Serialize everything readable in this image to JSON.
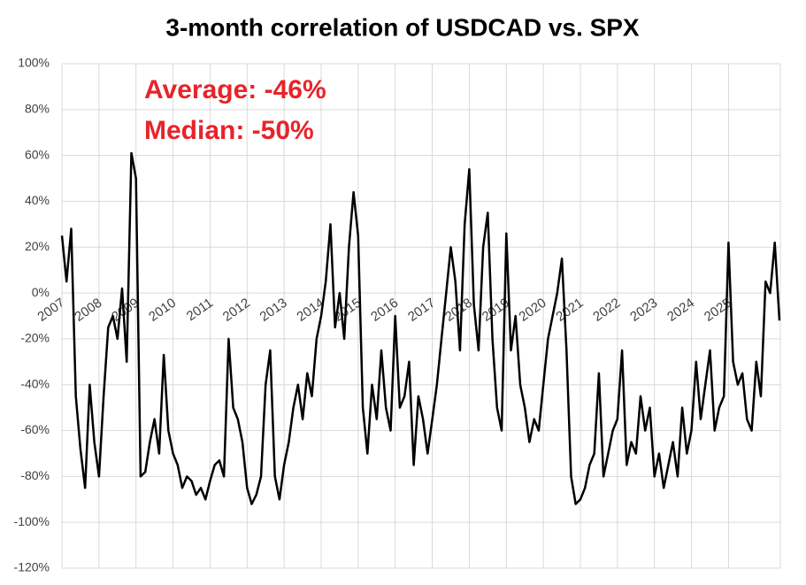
{
  "chart_data": {
    "type": "line",
    "title": "3-month correlation of USDCAD vs. SPX",
    "annotations": [
      "Average: -46%",
      "Median: -50%"
    ],
    "annotation_color": "#e8232a",
    "grid": true,
    "xlim": [
      2007,
      2026.4
    ],
    "xticks": [
      2007,
      2008,
      2009,
      2010,
      2011,
      2012,
      2013,
      2014,
      2015,
      2016,
      2017,
      2018,
      2019,
      2020,
      2021,
      2022,
      2023,
      2024,
      2025
    ],
    "ylim": [
      -120,
      100
    ],
    "yticks": [
      {
        "value": -120,
        "label": "-120%"
      },
      {
        "value": -100,
        "label": "-100%"
      },
      {
        "value": -80,
        "label": "-80%"
      },
      {
        "value": -60,
        "label": "-60%"
      },
      {
        "value": -40,
        "label": "-40%"
      },
      {
        "value": -20,
        "label": "-20%"
      },
      {
        "value": 0,
        "label": "0%"
      },
      {
        "value": 20,
        "label": "20%"
      },
      {
        "value": 40,
        "label": "40%"
      },
      {
        "value": 60,
        "label": "60%"
      },
      {
        "value": 80,
        "label": "80%"
      },
      {
        "value": 100,
        "label": "100%"
      }
    ],
    "x": [
      2007,
      2007.125,
      2007.25,
      2007.375,
      2007.5,
      2007.625,
      2007.75,
      2007.875,
      2008,
      2008.125,
      2008.25,
      2008.375,
      2008.5,
      2008.625,
      2008.75,
      2008.875,
      2009,
      2009.125,
      2009.25,
      2009.375,
      2009.5,
      2009.625,
      2009.75,
      2009.875,
      2010,
      2010.125,
      2010.25,
      2010.375,
      2010.5,
      2010.625,
      2010.75,
      2010.875,
      2011,
      2011.125,
      2011.25,
      2011.375,
      2011.5,
      2011.625,
      2011.75,
      2011.875,
      2012,
      2012.125,
      2012.25,
      2012.375,
      2012.5,
      2012.625,
      2012.75,
      2012.875,
      2013,
      2013.125,
      2013.25,
      2013.375,
      2013.5,
      2013.625,
      2013.75,
      2013.875,
      2014,
      2014.125,
      2014.25,
      2014.375,
      2014.5,
      2014.625,
      2014.75,
      2014.875,
      2015,
      2015.125,
      2015.25,
      2015.375,
      2015.5,
      2015.625,
      2015.75,
      2015.875,
      2016,
      2016.125,
      2016.25,
      2016.375,
      2016.5,
      2016.625,
      2016.75,
      2016.875,
      2017,
      2017.125,
      2017.25,
      2017.375,
      2017.5,
      2017.625,
      2017.75,
      2017.875,
      2018,
      2018.125,
      2018.25,
      2018.375,
      2018.5,
      2018.625,
      2018.75,
      2018.875,
      2019,
      2019.125,
      2019.25,
      2019.375,
      2019.5,
      2019.625,
      2019.75,
      2019.875,
      2020,
      2020.125,
      2020.25,
      2020.375,
      2020.5,
      2020.625,
      2020.75,
      2020.875,
      2021,
      2021.125,
      2021.25,
      2021.375,
      2021.5,
      2021.625,
      2021.75,
      2021.875,
      2022,
      2022.125,
      2022.25,
      2022.375,
      2022.5,
      2022.625,
      2022.75,
      2022.875,
      2023,
      2023.125,
      2023.25,
      2023.375,
      2023.5,
      2023.625,
      2023.75,
      2023.875,
      2024,
      2024.125,
      2024.25,
      2024.375,
      2024.5,
      2024.625,
      2024.75,
      2024.875,
      2025,
      2025.125,
      2025.25,
      2025.375,
      2025.5,
      2025.625,
      2025.75,
      2025.875,
      2026,
      2026.125,
      2026.25,
      2026.375
    ],
    "series": [
      {
        "name": "3-month correlation",
        "color": "#000000",
        "values": [
          25,
          5,
          28,
          -45,
          -68,
          -85,
          -40,
          -65,
          -80,
          -45,
          -15,
          -10,
          -20,
          2,
          -30,
          61,
          50,
          -80,
          -78,
          -65,
          -55,
          -70,
          -27,
          -60,
          -70,
          -75,
          -85,
          -80,
          -82,
          -88,
          -85,
          -90,
          -82,
          -75,
          -73,
          -80,
          -20,
          -50,
          -55,
          -65,
          -85,
          -92,
          -88,
          -80,
          -40,
          -25,
          -80,
          -90,
          -75,
          -65,
          -50,
          -40,
          -55,
          -35,
          -45,
          -20,
          -10,
          5,
          30,
          -15,
          0,
          -20,
          20,
          44,
          25,
          -50,
          -70,
          -40,
          -55,
          -25,
          -50,
          -60,
          -10,
          -50,
          -45,
          -30,
          -75,
          -45,
          -55,
          -70,
          -55,
          -40,
          -20,
          0,
          20,
          5,
          -25,
          30,
          54,
          -5,
          -25,
          20,
          35,
          -20,
          -50,
          -60,
          26,
          -25,
          -10,
          -40,
          -50,
          -65,
          -55,
          -60,
          -40,
          -20,
          -10,
          0,
          15,
          -25,
          -80,
          -92,
          -90,
          -85,
          -75,
          -70,
          -35,
          -80,
          -70,
          -60,
          -55,
          -25,
          -75,
          -65,
          -70,
          -45,
          -60,
          -50,
          -80,
          -70,
          -85,
          -75,
          -65,
          -80,
          -50,
          -70,
          -60,
          -30,
          -55,
          -40,
          -25,
          -60,
          -50,
          -45,
          22,
          -30,
          -40,
          -35,
          -55,
          -60,
          -30,
          -45,
          5,
          0,
          22,
          -12
        ]
      }
    ]
  }
}
